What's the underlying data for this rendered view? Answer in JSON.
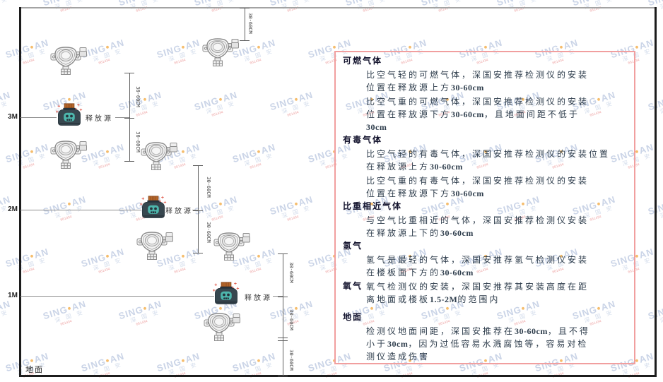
{
  "diagram": {
    "dim_label": "30-60CM",
    "height_labels": [
      "3M",
      "2M",
      "1M"
    ],
    "ground_label": "地面",
    "source_label": "释放源"
  },
  "watermark": {
    "brand_left": "SING",
    "brand_right": "AN",
    "dot": "●",
    "cjk": "深 国 安",
    "red_text": "661434"
  },
  "panel": {
    "sections": [
      {
        "heading": "可燃气体",
        "paragraphs": [
          [
            "比空气轻的可燃气体，深国安推荐检测仪的安装",
            "位置在释放源上方30-60cm"
          ],
          [
            "比空气重的可燃气体，深国安推荐检测仪的安装",
            "位置在释放源下方30-60cm，且地面间距不低于",
            "30cm"
          ]
        ]
      },
      {
        "heading": "有毒气体",
        "paragraphs": [
          [
            "比空气轻的有毒气体，深国安推荐检测仪的安装位置",
            "在释放源上方30-60cm"
          ],
          [
            "比空气重的有毒气体，深国安推荐检测仪的安装",
            "位置在释放源下方30-60cm"
          ]
        ]
      },
      {
        "heading": "比重相近气体",
        "paragraphs": [
          [
            "与空气比重相近的气体，深国安推荐检测仪安装",
            "在释放源上下的30-60cm"
          ]
        ]
      },
      {
        "heading": "氢气",
        "paragraphs": [
          [
            "氢气是最轻的气体，深国安推荐氢气检测仪安装",
            "在楼板面下方的30-60cm"
          ]
        ]
      },
      {
        "heading": "氧气",
        "inline": true,
        "paragraphs": [
          [
            "氧气检测仪的安装，深国安推荐其安装高度在距",
            "离地面或楼板1.5-2M的范围内"
          ]
        ]
      },
      {
        "heading": "地面",
        "extra_gap": true,
        "paragraphs": [
          [
            "检测仪地面间距，深国安推荐在30-60cm，且不得",
            "小于30cm，因为过低容易水溅腐蚀等，容易对检",
            "测仪造成伤害"
          ]
        ]
      }
    ]
  },
  "colors": {
    "panel_border": "#f19f9f",
    "watermark_blue": "#b9c6df",
    "watermark_dot": "#f2a73d",
    "watermark_red": "#e98a8a",
    "detector_outline": "#8a8a8a",
    "source_body": "#37474f",
    "source_face": "#4db6ac",
    "source_cap": "#b5662a",
    "sparkle_red": "#e05d4f",
    "wall_black": "#1c1c1c",
    "ceiling_gray": "#a3a3a3"
  }
}
